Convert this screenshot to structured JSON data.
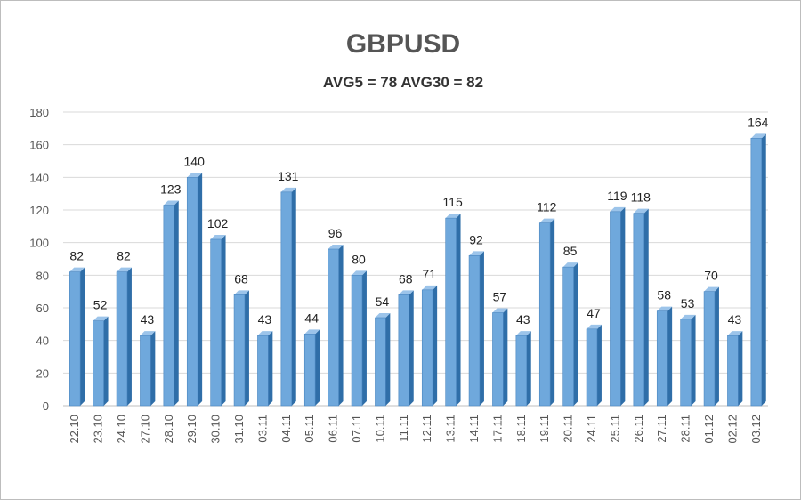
{
  "chart_data": {
    "type": "bar",
    "title": "GBPUSD",
    "subtitle": "AVG5 = 78 AVG30 = 82",
    "xlabel": "",
    "ylabel": "",
    "ylim": [
      0,
      180
    ],
    "yticks": [
      0,
      20,
      40,
      60,
      80,
      100,
      120,
      140,
      160,
      180
    ],
    "grid": true,
    "categories": [
      "22.10",
      "23.10",
      "24.10",
      "27.10",
      "28.10",
      "29.10",
      "30.10",
      "31.10",
      "03.11",
      "04.11",
      "05.11",
      "06.11",
      "07.11",
      "10.11",
      "11.11",
      "12.11",
      "13.11",
      "14.11",
      "17.11",
      "18.11",
      "19.11",
      "20.11",
      "24.11",
      "25.11",
      "26.11",
      "27.11",
      "28.11",
      "01.12",
      "02.12",
      "03.12"
    ],
    "values": [
      82,
      52,
      82,
      43,
      123,
      140,
      102,
      68,
      43,
      131,
      44,
      96,
      80,
      54,
      68,
      71,
      115,
      92,
      57,
      43,
      112,
      85,
      47,
      119,
      118,
      58,
      53,
      70,
      43,
      164
    ],
    "colors": {
      "bar_front": "#6fa8dc",
      "bar_side": "#2f6ea8",
      "bar_top": "#9cc4ea",
      "grid": "#d9d9d9"
    }
  }
}
